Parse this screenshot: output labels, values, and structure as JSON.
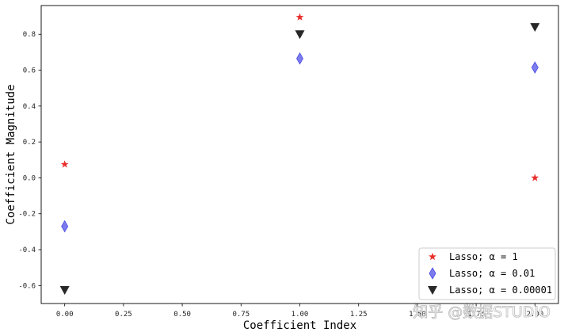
{
  "chart_data": {
    "type": "scatter",
    "xlabel": "Coefficient Index",
    "ylabel": "Coefficient Magnitude",
    "xlim": [
      -0.1,
      2.1
    ],
    "ylim": [
      -0.7,
      0.96
    ],
    "xticks": [
      "0.00",
      "0.25",
      "0.50",
      "0.75",
      "1.00",
      "1.25",
      "1.50",
      "1.75",
      "2.00"
    ],
    "xtick_values": [
      0,
      0.25,
      0.5,
      0.75,
      1.0,
      1.25,
      1.5,
      1.75,
      2.0
    ],
    "yticks": [
      "-0.6",
      "-0.4",
      "-0.2",
      "0.0",
      "0.2",
      "0.4",
      "0.6",
      "0.8"
    ],
    "ytick_values": [
      -0.6,
      -0.4,
      -0.2,
      0.0,
      0.2,
      0.4,
      0.6,
      0.8
    ],
    "grid": false,
    "legend_position": "bottom-right",
    "series": [
      {
        "name": "Lasso; α = 1",
        "marker": "star",
        "color": "#e8302c",
        "x": [
          0,
          1,
          2
        ],
        "y": [
          0.075,
          0.895,
          0.0
        ]
      },
      {
        "name": "Lasso; α = 0.01",
        "marker": "thin_diamond",
        "color": "#4a4ae6",
        "x": [
          0,
          1,
          2
        ],
        "y": [
          -0.27,
          0.665,
          0.615
        ]
      },
      {
        "name": "Lasso; α = 0.00001",
        "marker": "triangle_down",
        "color": "#111111",
        "x": [
          0,
          1,
          2
        ],
        "y": [
          -0.625,
          0.8,
          0.84
        ]
      }
    ]
  },
  "watermark": "知乎 @数据STUDIO"
}
